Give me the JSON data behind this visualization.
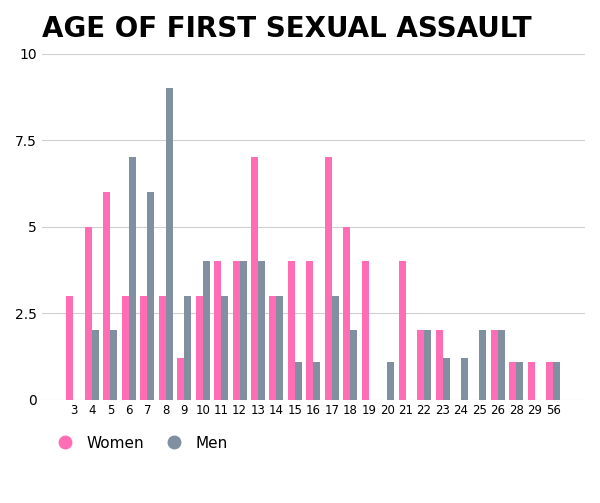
{
  "title": "AGE OF FIRST SEXUAL ASSAULT",
  "title_fontsize": 20,
  "title_fontweight": "bold",
  "background_color": "#ffffff",
  "bar_color_women": "#FF6EB4",
  "bar_color_men": "#8090A0",
  "ages": [
    3,
    4,
    5,
    6,
    7,
    8,
    9,
    10,
    11,
    12,
    13,
    14,
    15,
    16,
    17,
    18,
    19,
    20,
    21,
    22,
    23,
    24,
    25,
    26,
    28,
    29,
    56
  ],
  "women": [
    3.0,
    5.0,
    6.0,
    3.0,
    3.0,
    3.0,
    1.2,
    3.0,
    4.0,
    4.0,
    7.0,
    3.0,
    4.0,
    4.0,
    7.0,
    5.0,
    4.0,
    0.0,
    4.0,
    2.0,
    2.0,
    0.0,
    0.0,
    2.0,
    1.1,
    1.1,
    1.1
  ],
  "men": [
    0.0,
    2.0,
    2.0,
    7.0,
    6.0,
    9.0,
    3.0,
    4.0,
    3.0,
    4.0,
    4.0,
    3.0,
    1.1,
    1.1,
    3.0,
    2.0,
    0.0,
    1.1,
    0.0,
    2.0,
    1.2,
    1.2,
    2.0,
    2.0,
    1.1,
    0.0,
    1.1
  ],
  "ylim": [
    0,
    10
  ],
  "yticks": [
    0,
    2.5,
    5,
    7.5,
    10
  ],
  "legend_labels": [
    "Women",
    "Men"
  ],
  "bar_width": 0.38,
  "figsize": [
    6.0,
    5.03
  ],
  "dpi": 100
}
